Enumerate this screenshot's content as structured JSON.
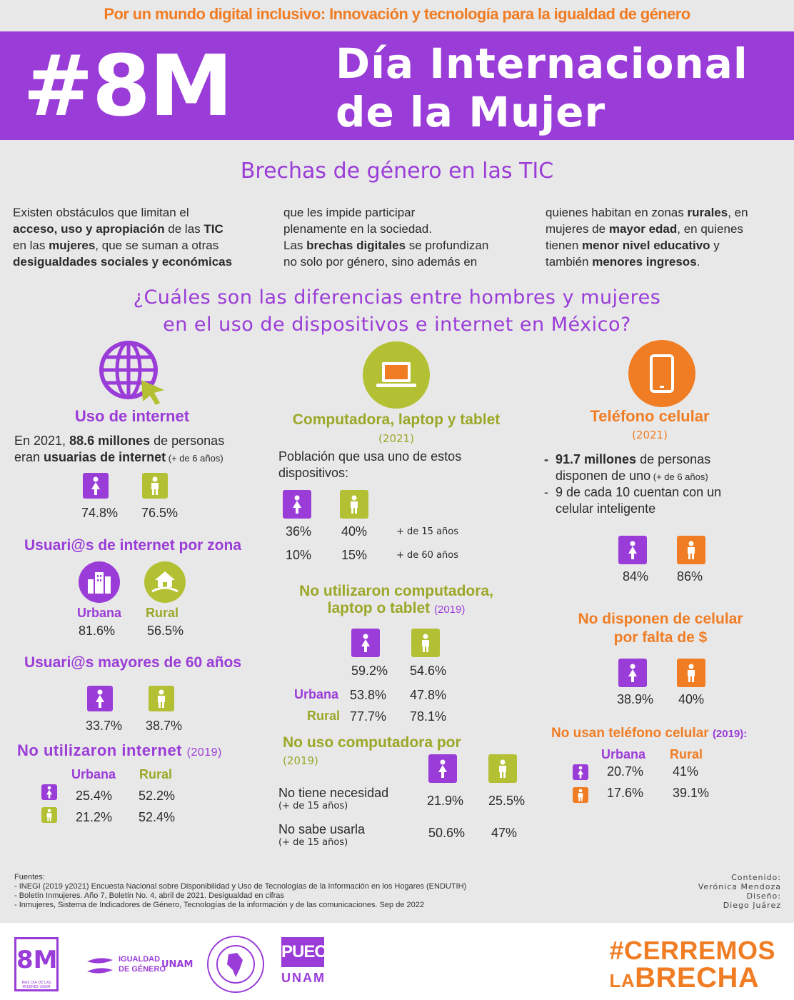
{
  "banner": "Por un mundo digital inclusivo: Innovación y tecnología para la igualdad de género",
  "header": {
    "hashtag": "#8M",
    "line1": "Día Internacional",
    "line2": "de la Mujer"
  },
  "section_title": "Brechas de género en las TIC",
  "intro": {
    "c1": [
      "Existen obstáculos que limitan el",
      "acceso, uso y apropiación",
      " de las ",
      "TIC",
      "en las ",
      "mujeres",
      ", que se suman a otras",
      "desigualdades sociales y económicas"
    ],
    "c2": [
      "que les impide participar",
      "plenamente en la sociedad.",
      "Las ",
      "brechas digitales",
      " se profundizan",
      "no solo por género, sino además en"
    ],
    "c3": [
      "quienes habitan en zonas ",
      "rurales",
      ", en",
      "mujeres de ",
      "mayor edad",
      ", en quienes",
      "tienen ",
      "menor nivel educativo",
      " y",
      "también ",
      "menores ingresos",
      "."
    ]
  },
  "question": {
    "line1": "¿Cuáles son las diferencias entre hombres y mujeres",
    "line2": "en el uso de dispositivos e internet en México?"
  },
  "internet": {
    "title": "Uso de internet",
    "text1a": "En 2021, ",
    "text1b": "88.6 millones",
    "text1c": " de personas",
    "text2a": "eran ",
    "text2b": "usuarias de internet",
    "text2c": " (+ de 6 años)",
    "women": "74.8%",
    "men": "76.5%",
    "zone_title": "Usuari@s de internet por zona",
    "urban_label": "Urbana",
    "rural_label": "Rural",
    "urban": "81.6%",
    "rural": "56.5%",
    "older_title": "Usuari@s mayores de 60 años",
    "older_women": "33.7%",
    "older_men": "38.7%",
    "no_title": "No utilizaron internet",
    "no_year": "(2019)",
    "no_urbana": "Urbana",
    "no_rural": "Rural",
    "no_w_u": "25.4%",
    "no_w_r": "52.2%",
    "no_m_u": "21.2%",
    "no_m_r": "52.4%"
  },
  "computer": {
    "title": "Computadora, laptop y tablet",
    "year": "(2021)",
    "text1": "Población que usa uno de estos",
    "text2": "dispositivos:",
    "w15": "36%",
    "m15": "40%",
    "age15": "+ de 15 años",
    "w60": "10%",
    "m60": "15%",
    "age60": "+ de 60 años",
    "no_title1": "No utilizaron computadora,",
    "no_title2": "laptop o tablet",
    "no_year": "(2019)",
    "no_w": "59.2%",
    "no_m": "54.6%",
    "urbana": "Urbana",
    "u_w": "53.8%",
    "u_m": "47.8%",
    "rural": "Rural",
    "r_w": "77.7%",
    "r_m": "78.1%",
    "reason_title": "No uso computadora por",
    "reason_year": "(2019)",
    "reason1": "No tiene necesidad",
    "reason1_sub": "(+ de 15 años)",
    "reason1_w": "21.9%",
    "reason1_m": "25.5%",
    "reason2": "No sabe usarla",
    "reason2_sub": "(+ de 15 años)",
    "reason2_w": "50.6%",
    "reason2_m": "47%"
  },
  "phone": {
    "title": "Teléfono celular",
    "year": "(2021)",
    "b1a": "91.7 millones",
    "b1b": " de personas",
    "b1c": "disponen de uno",
    "b1d": " (+ de 6 años)",
    "b2a": "9 de cada 10 cuentan con un",
    "b2b": "celular inteligente",
    "women": "84%",
    "men": "86%",
    "no_title1": "No disponen de celular",
    "no_title2": "por falta de $",
    "no_w": "38.9%",
    "no_m": "40%",
    "nouse_title": "No usan teléfono celular",
    "nouse_year": "(2019):",
    "urbana": "Urbana",
    "rural": "Rural",
    "w_u": "20.7%",
    "w_r": "41%",
    "m_u": "17.6%",
    "m_r": "39.1%"
  },
  "sources": {
    "label": "Fuentes:",
    "s1": "-   INEGI (2019 y2021)   Encuesta Nacional sobre Disponibilidad y Uso de Tecnologías de la Información en los Hogares (ENDUTIH)",
    "s2": "-   Boletín Inmujeres. Año 7, Boletín No. 4, abril de 2021. Desigualdad en cifras",
    "s3": "-   Inmujeres, Sistema de Indicadores de Género, Tecnologías de la información y de las comunicaciones.  Sep de 2022"
  },
  "credits": {
    "c1": "Contenido:",
    "c2": "Verónica Mendoza",
    "c3": "Diseño:",
    "c4": "Diego Juárez"
  },
  "footer": {
    "logo1": "8M",
    "logo1_sub": "MAS DIA DE LAS MUJERES UNAM",
    "logo2a": "IGUALDAD",
    "logo2b": "DE GÉNERO",
    "logo2c": "UNAM",
    "logo4a": "PUEC",
    "logo4b": "UNAM",
    "cerremos1": "#CERREMOS",
    "cerremos2a": "LA",
    "cerremos2b": "BRECHA"
  },
  "colors": {
    "purple": "#9a3cd8",
    "olive": "#b4c033",
    "orange": "#f07d24"
  }
}
